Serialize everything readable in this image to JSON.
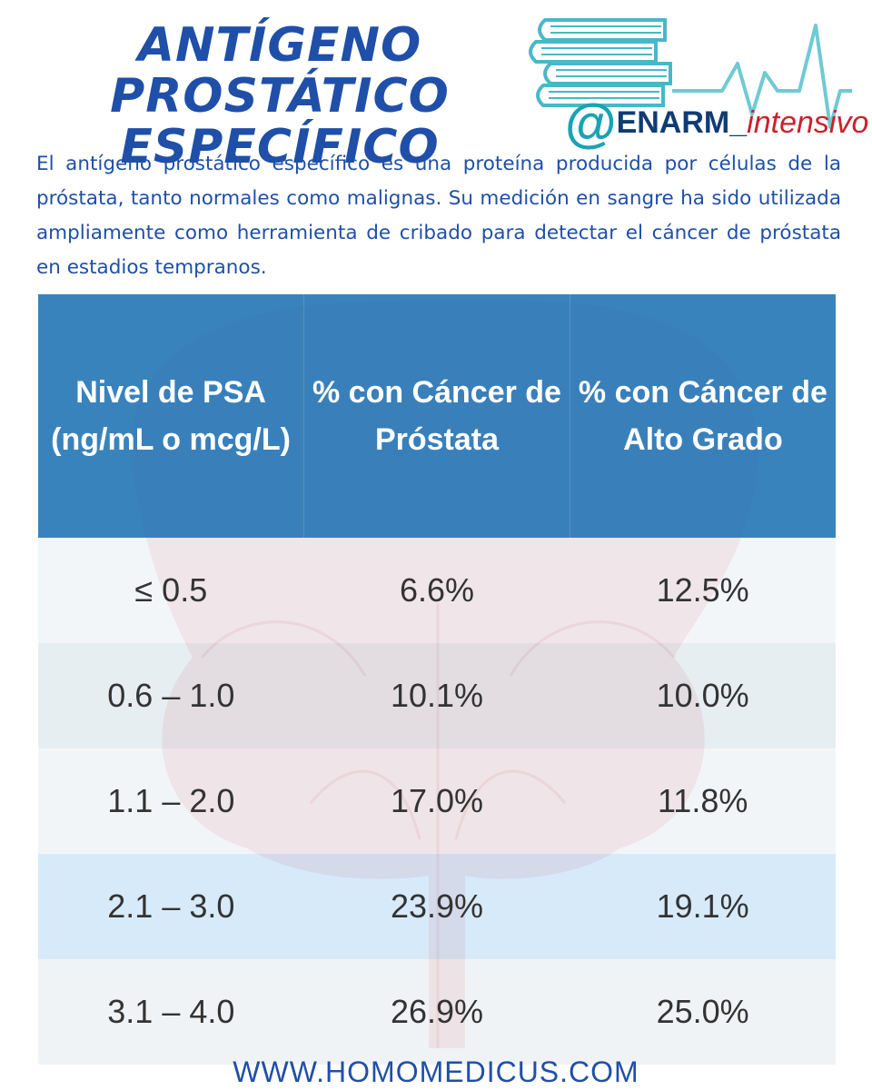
{
  "header": {
    "title_line1": "ANTÍGENO PROSTÁTICO",
    "title_line2": "ESPECÍFICO"
  },
  "logo": {
    "at": "@",
    "main": "ENARM",
    "separator": "_",
    "sub": "intensivo",
    "icon": "books-heartbeat-icon"
  },
  "intro": "El antígeno prostático específico es una proteína producida por células de la próstata, tanto normales como malignas. Su medición en sangre ha sido utilizada ampliamente como herramienta de cribado para detectar el cáncer de próstata en estadios tempranos.",
  "table": {
    "headers": [
      "Nivel de PSA (ng/mL o mcg/L)",
      "% con Cáncer de Próstata",
      "% con Cáncer de Alto Grado"
    ],
    "rows": [
      [
        "≤ 0.5",
        "6.6%",
        "12.5%"
      ],
      [
        "0.6 – 1.0",
        "10.1%",
        "10.0%"
      ],
      [
        "1.1 – 2.0",
        "17.0%",
        "11.8%"
      ],
      [
        "2.1 – 3.0",
        "23.9%",
        "19.1%"
      ],
      [
        "3.1 – 4.0",
        "26.9%",
        "25.0%"
      ]
    ]
  },
  "footer": "WWW.HOMOMEDICUS.COM",
  "colors": {
    "title": "#1f4fa8",
    "header_bg": "#2a7ab8",
    "logo_teal": "#18a3b5",
    "logo_navy": "#0f3c73",
    "logo_red": "#c8232c",
    "watermark": "#f0a3a8"
  }
}
